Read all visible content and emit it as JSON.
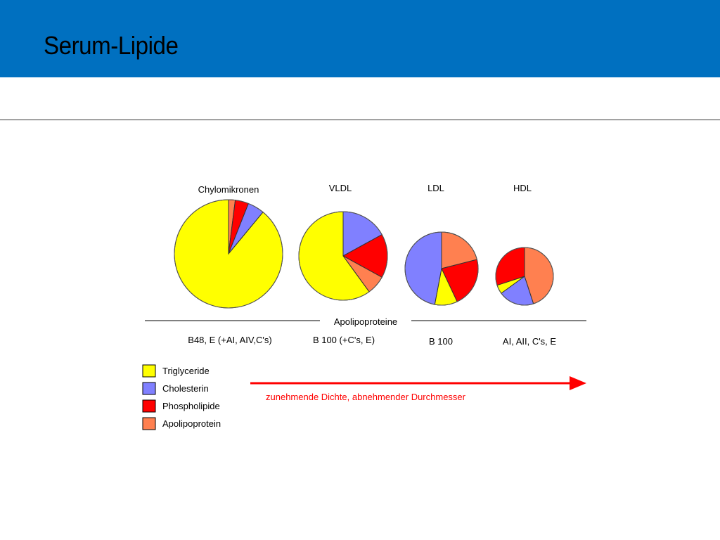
{
  "slide": {
    "title": "Serum-Lipide"
  },
  "chart_data": {
    "type": "pie",
    "colors": {
      "Triglyceride": "#ffff00",
      "Cholesterin": "#8080ff",
      "Phospholipide": "#ff0000",
      "Apolipoprotein": "#ff8050"
    },
    "legend": [
      "Triglyceride",
      "Cholesterin",
      "Phospholipide",
      "Apolipoprotein"
    ],
    "legend_position": "bottom-left",
    "charts": [
      {
        "title": "Chylomikronen",
        "apolipoproteins": "B48, E (+AI, AIV,C's)",
        "slices": [
          {
            "component": "Apolipoprotein",
            "value": 2
          },
          {
            "component": "Phospholipide",
            "value": 4
          },
          {
            "component": "Cholesterin",
            "value": 5
          },
          {
            "component": "Triglyceride",
            "value": 89
          }
        ]
      },
      {
        "title": "VLDL",
        "apolipoproteins": "B 100 (+C's, E)",
        "slices": [
          {
            "component": "Cholesterin",
            "value": 17
          },
          {
            "component": "Phospholipide",
            "value": 16
          },
          {
            "component": "Apolipoprotein",
            "value": 7
          },
          {
            "component": "Triglyceride",
            "value": 60
          }
        ]
      },
      {
        "title": "LDL",
        "apolipoproteins": "B 100",
        "slices": [
          {
            "component": "Apolipoprotein",
            "value": 21
          },
          {
            "component": "Phospholipide",
            "value": 22
          },
          {
            "component": "Triglyceride",
            "value": 10
          },
          {
            "component": "Cholesterin",
            "value": 47
          }
        ]
      },
      {
        "title": "HDL",
        "apolipoproteins": "AI, AII, C's, E",
        "slices": [
          {
            "component": "Apolipoprotein",
            "value": 45
          },
          {
            "component": "Cholesterin",
            "value": 20
          },
          {
            "component": "Triglyceride",
            "value": 5
          },
          {
            "component": "Phospholipide",
            "value": 30
          }
        ]
      }
    ],
    "section_label": "Apolipoproteine",
    "arrow_label": "zunehmende Dichte, abnehmender Durchmesser",
    "arrow_color": "#ff0000"
  }
}
